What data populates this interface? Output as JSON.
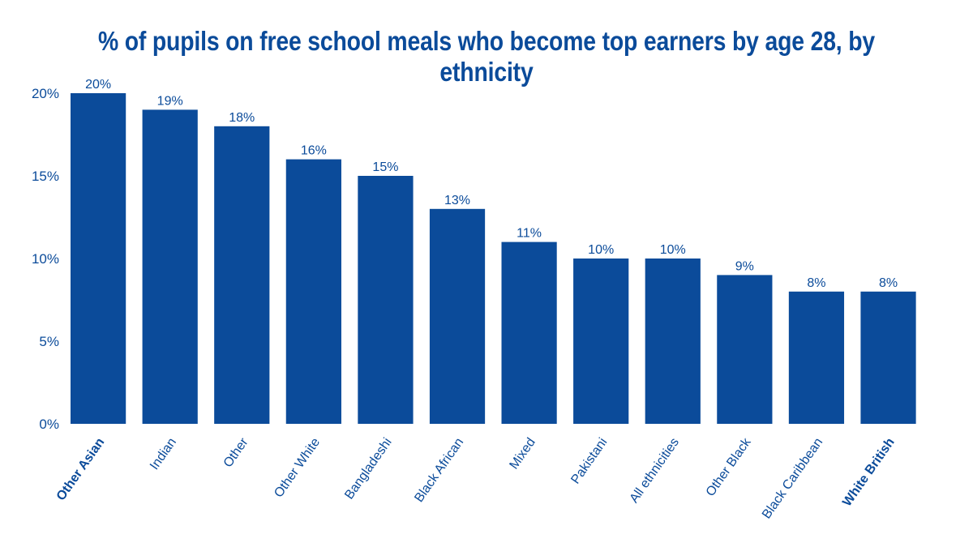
{
  "chart_data": {
    "type": "bar",
    "title": "% of pupils on free school meals who become top earners by age 28, by ethnicity",
    "xlabel": "",
    "ylabel": "",
    "ylim": [
      0,
      20
    ],
    "yticks": [
      "0%",
      "5%",
      "10%",
      "15%",
      "20%"
    ],
    "ytick_values": [
      0,
      5,
      10,
      15,
      20
    ],
    "categories": [
      "Other Asian",
      "Indian",
      "Other",
      "Other White",
      "Bangladeshi",
      "Black African",
      "Mixed",
      "Pakistani",
      "All ethnicities",
      "Other Black",
      "Black Caribbean",
      "White British"
    ],
    "values": [
      20,
      19,
      18,
      16,
      15,
      13,
      11,
      10,
      10,
      9,
      8,
      8
    ],
    "data_labels": [
      "20%",
      "19%",
      "18%",
      "16%",
      "15%",
      "13%",
      "11%",
      "10%",
      "10%",
      "9%",
      "8%",
      "8%"
    ],
    "bold_categories": [
      "Other Asian",
      "White British"
    ],
    "grid": false,
    "bar_color": "#0b4b9a",
    "text_color": "#0b4b9a"
  }
}
